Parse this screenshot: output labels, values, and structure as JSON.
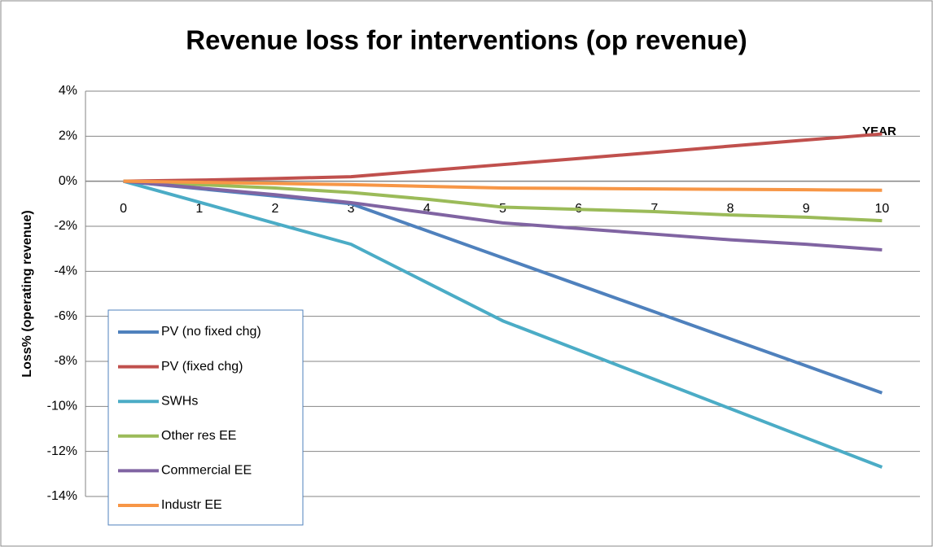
{
  "chart_data": {
    "type": "line",
    "title": "Revenue loss for interventions (op revenue)",
    "x_label": "YEAR",
    "y_label": "Loss% (operating revenue)",
    "categories": [
      "0",
      "1",
      "2",
      "3",
      "4",
      "5",
      "6",
      "7",
      "8",
      "9",
      "10"
    ],
    "series": [
      {
        "name": "PV (no  fixed chg)",
        "color": "#4F81BD",
        "values": [
          0,
          -0.33,
          -0.66,
          -1.0,
          -2.2,
          -3.4,
          -4.6,
          -5.8,
          -7.0,
          -8.2,
          -9.4
        ]
      },
      {
        "name": "PV (fixed chg)",
        "color": "#C0504D",
        "values": [
          0,
          0.05,
          0.12,
          0.2,
          0.47,
          0.74,
          1.01,
          1.28,
          1.56,
          1.83,
          2.1
        ]
      },
      {
        "name": "SWHs",
        "color": "#4BACC6",
        "values": [
          0,
          -0.93,
          -1.87,
          -2.8,
          -4.5,
          -6.2,
          -7.5,
          -8.8,
          -10.1,
          -11.4,
          -12.7
        ]
      },
      {
        "name": "Other res EE",
        "color": "#9BBB59",
        "values": [
          0,
          -0.15,
          -0.3,
          -0.5,
          -0.8,
          -1.15,
          -1.25,
          -1.35,
          -1.5,
          -1.6,
          -1.75
        ]
      },
      {
        "name": "Commercial EE",
        "color": "#8064A2",
        "values": [
          0,
          -0.3,
          -0.6,
          -0.95,
          -1.4,
          -1.85,
          -2.1,
          -2.35,
          -2.6,
          -2.8,
          -3.05
        ]
      },
      {
        "name": "Industr EE",
        "color": "#F79646",
        "values": [
          0,
          -0.05,
          -0.1,
          -0.15,
          -0.23,
          -0.3,
          -0.32,
          -0.34,
          -0.36,
          -0.38,
          -0.4
        ]
      }
    ],
    "ylim": [
      -14,
      4
    ],
    "yticks": [
      {
        "value": -14,
        "label": "-14%"
      },
      {
        "value": -12,
        "label": "-12%"
      },
      {
        "value": -10,
        "label": "-10%"
      },
      {
        "value": -8,
        "label": "-8%"
      },
      {
        "value": -6,
        "label": "-6%"
      },
      {
        "value": -4,
        "label": "-4%"
      },
      {
        "value": -2,
        "label": "-2%"
      },
      {
        "value": 0,
        "label": "0%"
      },
      {
        "value": 2,
        "label": "2%"
      },
      {
        "value": 4,
        "label": "4%"
      }
    ],
    "grid": true,
    "legend": "lower left"
  }
}
